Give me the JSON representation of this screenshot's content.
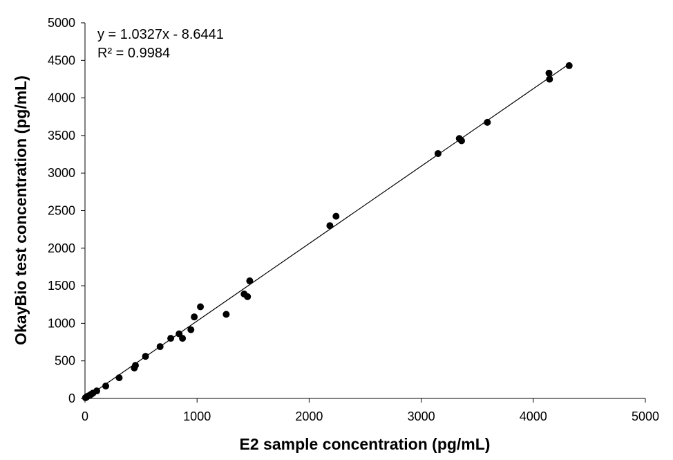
{
  "chart_data": {
    "type": "scatter",
    "title": "",
    "xlabel": "E2 sample concentration (pg/mL)",
    "ylabel": "OkayBio test concentration  (pg/mL)",
    "xlim": [
      0,
      5000
    ],
    "ylim": [
      0,
      5000
    ],
    "x_ticks": [
      "0",
      "1000",
      "2000",
      "3000",
      "4000",
      "5000"
    ],
    "y_ticks": [
      "0",
      "500",
      "1000",
      "1500",
      "2000",
      "2500",
      "3000",
      "3500",
      "4000",
      "4500",
      "5000"
    ],
    "grid": false,
    "legend": "none",
    "trendline": {
      "slope": 1.0327,
      "intercept": -8.6441
    },
    "annotations": [
      "y = 1.0327x - 8.6441",
      "R² = 0.9984"
    ],
    "marker_color": "#000000",
    "points": [
      {
        "x": 5,
        "y": 10
      },
      {
        "x": 15,
        "y": 20
      },
      {
        "x": 25,
        "y": 30
      },
      {
        "x": 40,
        "y": 40
      },
      {
        "x": 55,
        "y": 55
      },
      {
        "x": 70,
        "y": 70
      },
      {
        "x": 105,
        "y": 100
      },
      {
        "x": 185,
        "y": 165
      },
      {
        "x": 305,
        "y": 275
      },
      {
        "x": 440,
        "y": 405
      },
      {
        "x": 450,
        "y": 440
      },
      {
        "x": 540,
        "y": 560
      },
      {
        "x": 670,
        "y": 690
      },
      {
        "x": 765,
        "y": 800
      },
      {
        "x": 840,
        "y": 860
      },
      {
        "x": 870,
        "y": 800
      },
      {
        "x": 945,
        "y": 915
      },
      {
        "x": 975,
        "y": 1085
      },
      {
        "x": 1030,
        "y": 1220
      },
      {
        "x": 1260,
        "y": 1120
      },
      {
        "x": 1420,
        "y": 1390
      },
      {
        "x": 1450,
        "y": 1355
      },
      {
        "x": 1470,
        "y": 1565
      },
      {
        "x": 2185,
        "y": 2300
      },
      {
        "x": 2240,
        "y": 2425
      },
      {
        "x": 3150,
        "y": 3260
      },
      {
        "x": 3340,
        "y": 3460
      },
      {
        "x": 3360,
        "y": 3430
      },
      {
        "x": 3590,
        "y": 3675
      },
      {
        "x": 4140,
        "y": 4330
      },
      {
        "x": 4145,
        "y": 4250
      },
      {
        "x": 4320,
        "y": 4430
      }
    ]
  }
}
